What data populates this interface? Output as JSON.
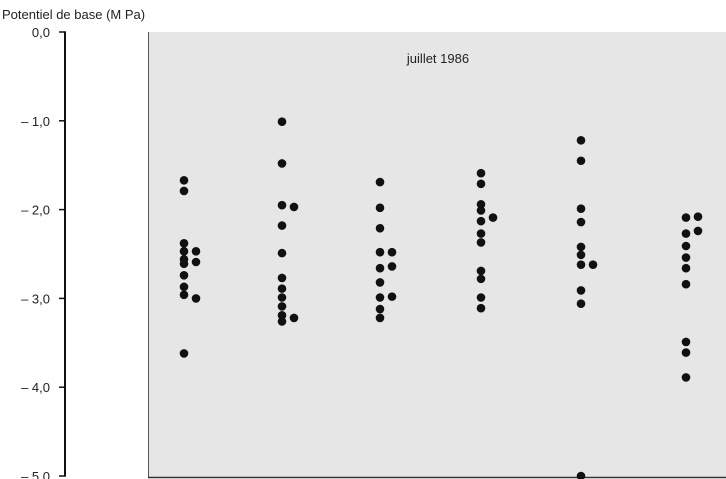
{
  "chart_data": {
    "type": "scatter",
    "title": "juillet 1986",
    "ylabel": "Potentiel de base (M Pa)",
    "xlabel": "",
    "ylim": [
      -5.0,
      0.0
    ],
    "yticks": [
      {
        "value": 0.0,
        "label": "0,0"
      },
      {
        "value": -1.0,
        "label": "– 1,0"
      },
      {
        "value": -2.0,
        "label": "– 2,0"
      },
      {
        "value": -3.0,
        "label": "– 3,0"
      },
      {
        "value": -4.0,
        "label": "– 4,0"
      },
      {
        "value": -5.0,
        "label": "– 5,0"
      }
    ],
    "grid": false,
    "background_color": "#e6e6e6",
    "point_color": "#111111",
    "groups": [
      {
        "group": 1,
        "points": [
          {
            "offset": 0,
            "y": -1.67
          },
          {
            "offset": 0,
            "y": -1.79
          },
          {
            "offset": 0,
            "y": -2.38
          },
          {
            "offset": 0,
            "y": -2.47
          },
          {
            "offset": 0,
            "y": -2.56
          },
          {
            "offset": 0,
            "y": -2.61
          },
          {
            "offset": 0,
            "y": -2.74
          },
          {
            "offset": 0,
            "y": -2.87
          },
          {
            "offset": 0,
            "y": -2.96
          },
          {
            "offset": 0,
            "y": -3.62
          },
          {
            "offset": 1,
            "y": -2.47
          },
          {
            "offset": 1,
            "y": -2.59
          },
          {
            "offset": 1,
            "y": -3.0
          }
        ]
      },
      {
        "group": 2,
        "points": [
          {
            "offset": 0,
            "y": -1.01
          },
          {
            "offset": 0,
            "y": -1.48
          },
          {
            "offset": 0,
            "y": -1.95
          },
          {
            "offset": 0,
            "y": -2.18
          },
          {
            "offset": 0,
            "y": -2.49
          },
          {
            "offset": 0,
            "y": -2.77
          },
          {
            "offset": 0,
            "y": -2.89
          },
          {
            "offset": 0,
            "y": -2.99
          },
          {
            "offset": 0,
            "y": -3.09
          },
          {
            "offset": 0,
            "y": -3.19
          },
          {
            "offset": 0,
            "y": -3.26
          },
          {
            "offset": 1,
            "y": -1.97
          },
          {
            "offset": 1,
            "y": -3.22
          }
        ]
      },
      {
        "group": 3,
        "points": [
          {
            "offset": 0,
            "y": -1.69
          },
          {
            "offset": 0,
            "y": -1.98
          },
          {
            "offset": 0,
            "y": -2.21
          },
          {
            "offset": 0,
            "y": -2.48
          },
          {
            "offset": 0,
            "y": -2.66
          },
          {
            "offset": 0,
            "y": -2.82
          },
          {
            "offset": 0,
            "y": -2.99
          },
          {
            "offset": 0,
            "y": -3.12
          },
          {
            "offset": 0,
            "y": -3.22
          },
          {
            "offset": 1,
            "y": -2.48
          },
          {
            "offset": 1,
            "y": -2.64
          },
          {
            "offset": 1,
            "y": -2.98
          }
        ]
      },
      {
        "group": 4,
        "points": [
          {
            "offset": 0,
            "y": -1.59
          },
          {
            "offset": 0,
            "y": -1.71
          },
          {
            "offset": 0,
            "y": -1.94
          },
          {
            "offset": 0,
            "y": -2.01
          },
          {
            "offset": 0,
            "y": -2.13
          },
          {
            "offset": 0,
            "y": -2.27
          },
          {
            "offset": 0,
            "y": -2.37
          },
          {
            "offset": 0,
            "y": -2.69
          },
          {
            "offset": 0,
            "y": -2.78
          },
          {
            "offset": 0,
            "y": -2.99
          },
          {
            "offset": 0,
            "y": -3.11
          },
          {
            "offset": 1,
            "y": -2.09
          }
        ]
      },
      {
        "group": 5,
        "points": [
          {
            "offset": 0,
            "y": -1.22
          },
          {
            "offset": 0,
            "y": -1.45
          },
          {
            "offset": 0,
            "y": -1.99
          },
          {
            "offset": 0,
            "y": -2.14
          },
          {
            "offset": 0,
            "y": -2.42
          },
          {
            "offset": 0,
            "y": -2.51
          },
          {
            "offset": 0,
            "y": -2.62
          },
          {
            "offset": 0,
            "y": -2.91
          },
          {
            "offset": 0,
            "y": -3.06
          },
          {
            "offset": 0,
            "y": -5.0
          },
          {
            "offset": 1,
            "y": -2.62
          }
        ]
      },
      {
        "group": 6,
        "points": [
          {
            "offset": 0,
            "y": -2.09
          },
          {
            "offset": 0,
            "y": -2.27
          },
          {
            "offset": 0,
            "y": -2.41
          },
          {
            "offset": 0,
            "y": -2.54
          },
          {
            "offset": 0,
            "y": -2.66
          },
          {
            "offset": 0,
            "y": -2.84
          },
          {
            "offset": 0,
            "y": -3.49
          },
          {
            "offset": 0,
            "y": -3.61
          },
          {
            "offset": 0,
            "y": -3.89
          },
          {
            "offset": 1,
            "y": -2.08
          },
          {
            "offset": 1,
            "y": -2.24
          }
        ]
      }
    ]
  }
}
